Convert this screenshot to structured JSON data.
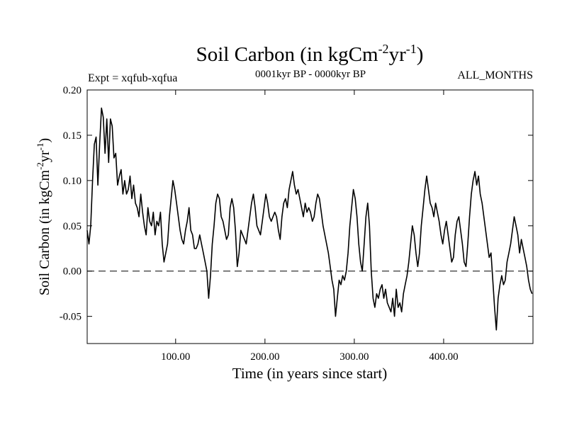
{
  "chart_data": {
    "type": "line",
    "title": "Soil Carbon (in kgCm",
    "title_sup1": "-2",
    "title_mid": "yr",
    "title_sup2": "-1",
    "title_end": ")",
    "subtitle_left": "Expt = xqfub-xqfua",
    "subtitle_center": "0001kyr BP - 0000kyr BP",
    "subtitle_right": "ALL_MONTHS",
    "xlabel": "Time (in years since start)",
    "ylabel": "Soil Carbon (in kgCm",
    "ylabel_sup1": "-2",
    "ylabel_mid": "yr",
    "ylabel_sup2": "-1",
    "ylabel_end": ")",
    "xlim": [
      1,
      500
    ],
    "ylim": [
      -0.08,
      0.2
    ],
    "xticks": [
      100,
      200,
      300,
      400
    ],
    "xtick_labels": [
      "100.00",
      "200.00",
      "300.00",
      "400.00"
    ],
    "yticks": [
      0.2,
      0.15,
      0.1,
      0.05,
      0.0,
      -0.05
    ],
    "ytick_labels": [
      "0.20",
      "0.15",
      "0.10",
      "0.05",
      "0.00",
      "-0.05"
    ],
    "reference_line": {
      "y": 0.0,
      "style": "dashed"
    },
    "series": [
      {
        "name": "Soil Carbon",
        "color": "#000000",
        "points": [
          [
            1,
            0.045
          ],
          [
            3,
            0.03
          ],
          [
            5,
            0.05
          ],
          [
            7,
            0.1
          ],
          [
            9,
            0.14
          ],
          [
            11,
            0.148
          ],
          [
            13,
            0.095
          ],
          [
            15,
            0.14
          ],
          [
            17,
            0.18
          ],
          [
            19,
            0.17
          ],
          [
            21,
            0.13
          ],
          [
            23,
            0.168
          ],
          [
            25,
            0.12
          ],
          [
            27,
            0.168
          ],
          [
            29,
            0.16
          ],
          [
            31,
            0.125
          ],
          [
            33,
            0.13
          ],
          [
            35,
            0.095
          ],
          [
            37,
            0.105
          ],
          [
            39,
            0.112
          ],
          [
            41,
            0.085
          ],
          [
            43,
            0.1
          ],
          [
            45,
            0.085
          ],
          [
            47,
            0.09
          ],
          [
            49,
            0.105
          ],
          [
            51,
            0.08
          ],
          [
            53,
            0.095
          ],
          [
            55,
            0.075
          ],
          [
            57,
            0.07
          ],
          [
            59,
            0.06
          ],
          [
            61,
            0.085
          ],
          [
            63,
            0.065
          ],
          [
            65,
            0.05
          ],
          [
            67,
            0.04
          ],
          [
            69,
            0.07
          ],
          [
            71,
            0.055
          ],
          [
            73,
            0.05
          ],
          [
            75,
            0.065
          ],
          [
            77,
            0.04
          ],
          [
            79,
            0.055
          ],
          [
            81,
            0.05
          ],
          [
            83,
            0.065
          ],
          [
            85,
            0.03
          ],
          [
            87,
            0.01
          ],
          [
            89,
            0.02
          ],
          [
            91,
            0.03
          ],
          [
            93,
            0.06
          ],
          [
            95,
            0.08
          ],
          [
            97,
            0.1
          ],
          [
            99,
            0.09
          ],
          [
            101,
            0.075
          ],
          [
            103,
            0.06
          ],
          [
            105,
            0.045
          ],
          [
            107,
            0.035
          ],
          [
            109,
            0.03
          ],
          [
            111,
            0.045
          ],
          [
            113,
            0.055
          ],
          [
            115,
            0.07
          ],
          [
            117,
            0.045
          ],
          [
            119,
            0.04
          ],
          [
            121,
            0.025
          ],
          [
            123,
            0.025
          ],
          [
            125,
            0.03
          ],
          [
            127,
            0.04
          ],
          [
            129,
            0.03
          ],
          [
            131,
            0.02
          ],
          [
            133,
            0.01
          ],
          [
            135,
            0.0
          ],
          [
            137,
            -0.03
          ],
          [
            139,
            -0.005
          ],
          [
            141,
            0.03
          ],
          [
            143,
            0.05
          ],
          [
            145,
            0.075
          ],
          [
            147,
            0.085
          ],
          [
            149,
            0.08
          ],
          [
            151,
            0.06
          ],
          [
            153,
            0.055
          ],
          [
            155,
            0.045
          ],
          [
            157,
            0.035
          ],
          [
            159,
            0.04
          ],
          [
            161,
            0.07
          ],
          [
            163,
            0.08
          ],
          [
            165,
            0.07
          ],
          [
            167,
            0.045
          ],
          [
            169,
            0.005
          ],
          [
            171,
            0.02
          ],
          [
            173,
            0.045
          ],
          [
            175,
            0.04
          ],
          [
            177,
            0.035
          ],
          [
            179,
            0.03
          ],
          [
            181,
            0.045
          ],
          [
            183,
            0.06
          ],
          [
            185,
            0.075
          ],
          [
            187,
            0.085
          ],
          [
            189,
            0.07
          ],
          [
            191,
            0.05
          ],
          [
            193,
            0.045
          ],
          [
            195,
            0.04
          ],
          [
            197,
            0.055
          ],
          [
            199,
            0.07
          ],
          [
            201,
            0.085
          ],
          [
            203,
            0.075
          ],
          [
            205,
            0.06
          ],
          [
            207,
            0.055
          ],
          [
            209,
            0.06
          ],
          [
            211,
            0.065
          ],
          [
            213,
            0.06
          ],
          [
            215,
            0.045
          ],
          [
            217,
            0.035
          ],
          [
            219,
            0.06
          ],
          [
            221,
            0.075
          ],
          [
            223,
            0.08
          ],
          [
            225,
            0.07
          ],
          [
            227,
            0.09
          ],
          [
            229,
            0.1
          ],
          [
            231,
            0.11
          ],
          [
            233,
            0.095
          ],
          [
            235,
            0.085
          ],
          [
            237,
            0.09
          ],
          [
            239,
            0.08
          ],
          [
            241,
            0.07
          ],
          [
            243,
            0.06
          ],
          [
            245,
            0.075
          ],
          [
            247,
            0.065
          ],
          [
            249,
            0.07
          ],
          [
            251,
            0.065
          ],
          [
            253,
            0.055
          ],
          [
            255,
            0.06
          ],
          [
            257,
            0.075
          ],
          [
            259,
            0.085
          ],
          [
            261,
            0.08
          ],
          [
            263,
            0.065
          ],
          [
            265,
            0.05
          ],
          [
            267,
            0.04
          ],
          [
            269,
            0.03
          ],
          [
            271,
            0.02
          ],
          [
            273,
            0.005
          ],
          [
            275,
            -0.01
          ],
          [
            277,
            -0.02
          ],
          [
            279,
            -0.05
          ],
          [
            281,
            -0.03
          ],
          [
            283,
            -0.01
          ],
          [
            285,
            -0.015
          ],
          [
            287,
            -0.005
          ],
          [
            289,
            -0.01
          ],
          [
            291,
            0.0
          ],
          [
            293,
            0.02
          ],
          [
            295,
            0.05
          ],
          [
            297,
            0.07
          ],
          [
            299,
            0.09
          ],
          [
            301,
            0.08
          ],
          [
            303,
            0.06
          ],
          [
            305,
            0.03
          ],
          [
            307,
            0.01
          ],
          [
            309,
            0.0
          ],
          [
            311,
            0.03
          ],
          [
            313,
            0.06
          ],
          [
            315,
            0.075
          ],
          [
            317,
            0.05
          ],
          [
            319,
            0.0
          ],
          [
            321,
            -0.03
          ],
          [
            323,
            -0.04
          ],
          [
            325,
            -0.025
          ],
          [
            327,
            -0.03
          ],
          [
            329,
            -0.02
          ],
          [
            331,
            -0.015
          ],
          [
            333,
            -0.03
          ],
          [
            335,
            -0.02
          ],
          [
            337,
            -0.035
          ],
          [
            339,
            -0.04
          ],
          [
            341,
            -0.045
          ],
          [
            343,
            -0.03
          ],
          [
            345,
            -0.05
          ],
          [
            347,
            -0.02
          ],
          [
            349,
            -0.04
          ],
          [
            351,
            -0.035
          ],
          [
            353,
            -0.045
          ],
          [
            355,
            -0.025
          ],
          [
            357,
            -0.015
          ],
          [
            359,
            -0.005
          ],
          [
            361,
            0.01
          ],
          [
            363,
            0.03
          ],
          [
            365,
            0.05
          ],
          [
            367,
            0.04
          ],
          [
            369,
            0.02
          ],
          [
            371,
            0.005
          ],
          [
            373,
            0.02
          ],
          [
            375,
            0.05
          ],
          [
            377,
            0.07
          ],
          [
            379,
            0.09
          ],
          [
            381,
            0.105
          ],
          [
            383,
            0.09
          ],
          [
            385,
            0.075
          ],
          [
            387,
            0.07
          ],
          [
            389,
            0.06
          ],
          [
            391,
            0.075
          ],
          [
            393,
            0.065
          ],
          [
            395,
            0.055
          ],
          [
            397,
            0.04
          ],
          [
            399,
            0.03
          ],
          [
            401,
            0.045
          ],
          [
            403,
            0.055
          ],
          [
            405,
            0.04
          ],
          [
            407,
            0.025
          ],
          [
            409,
            0.01
          ],
          [
            411,
            0.015
          ],
          [
            413,
            0.04
          ],
          [
            415,
            0.055
          ],
          [
            417,
            0.06
          ],
          [
            419,
            0.045
          ],
          [
            421,
            0.03
          ],
          [
            423,
            0.01
          ],
          [
            425,
            0.005
          ],
          [
            427,
            0.03
          ],
          [
            429,
            0.06
          ],
          [
            431,
            0.085
          ],
          [
            433,
            0.1
          ],
          [
            435,
            0.11
          ],
          [
            437,
            0.095
          ],
          [
            439,
            0.105
          ],
          [
            441,
            0.085
          ],
          [
            443,
            0.075
          ],
          [
            445,
            0.06
          ],
          [
            447,
            0.045
          ],
          [
            449,
            0.03
          ],
          [
            451,
            0.015
          ],
          [
            453,
            0.02
          ],
          [
            455,
            -0.01
          ],
          [
            457,
            -0.04
          ],
          [
            459,
            -0.065
          ],
          [
            461,
            -0.03
          ],
          [
            463,
            -0.015
          ],
          [
            465,
            -0.005
          ],
          [
            467,
            -0.015
          ],
          [
            469,
            -0.01
          ],
          [
            471,
            0.01
          ],
          [
            473,
            0.02
          ],
          [
            475,
            0.03
          ],
          [
            477,
            0.045
          ],
          [
            479,
            0.06
          ],
          [
            481,
            0.05
          ],
          [
            483,
            0.04
          ],
          [
            485,
            0.02
          ],
          [
            487,
            0.035
          ],
          [
            489,
            0.025
          ],
          [
            491,
            0.015
          ],
          [
            493,
            0.005
          ],
          [
            495,
            -0.01
          ],
          [
            497,
            -0.02
          ],
          [
            499,
            -0.025
          ]
        ]
      }
    ]
  }
}
